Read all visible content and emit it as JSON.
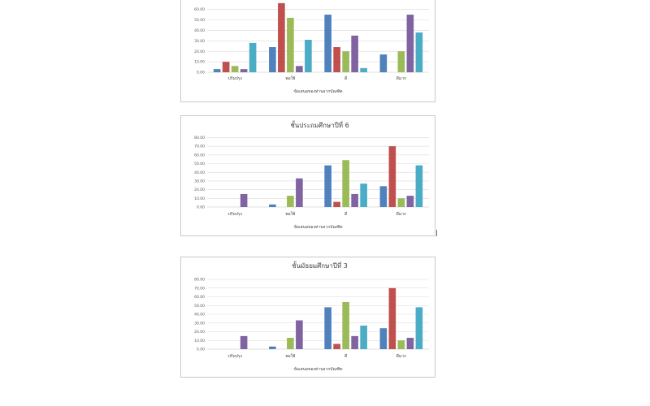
{
  "colors": [
    "#4f81bd",
    "#c0504d",
    "#9bbb59",
    "#8064a2",
    "#4bacc6"
  ],
  "charts": [
    {
      "chart_data": {
        "type": "bar",
        "title": "",
        "xlabel": "ข้อเสนอของท่านจากบัณฑิต",
        "ylabel": "",
        "categories": [
          "ปรับปรุง",
          "พอใช้",
          "ดี",
          "ดีมาก"
        ],
        "ylim": [
          0,
          80
        ],
        "yticks": [
          "0.00",
          "10.00",
          "20.00",
          "30.00",
          "40.00",
          "50.00",
          "60.00"
        ],
        "series": [
          {
            "values": [
              3,
              24,
              55,
              17
            ]
          },
          {
            "values": [
              10,
              66,
              24,
              0
            ]
          },
          {
            "values": [
              6,
              52,
              20,
              20
            ]
          },
          {
            "values": [
              3,
              6,
              35,
              55
            ]
          },
          {
            "values": [
              28,
              31,
              4,
              38
            ]
          }
        ],
        "grid": true,
        "legend": "none"
      }
    },
    {
      "chart_data": {
        "type": "bar",
        "title": "ชั้นประถมศึกษาปีที่ 6",
        "xlabel": "ข้อเสนอของท่านจากบัณฑิต",
        "ylabel": "",
        "categories": [
          "ปรับปรุง",
          "พอใช้",
          "ดี",
          "ดีมาก"
        ],
        "ylim": [
          0,
          80
        ],
        "yticks": [
          "0.00",
          "10.00",
          "20.00",
          "30.00",
          "40.00",
          "50.00",
          "60.00",
          "70.00",
          "80.00"
        ],
        "series": [
          {
            "values": [
              0,
              3,
              48,
              24
            ]
          },
          {
            "values": [
              0,
              0,
              6,
              70
            ]
          },
          {
            "values": [
              0,
              13,
              54,
              10
            ]
          },
          {
            "values": [
              15,
              33,
              15,
              13
            ]
          },
          {
            "values": [
              0,
              0,
              27,
              48
            ]
          }
        ],
        "grid": true,
        "legend": "none"
      }
    },
    {
      "chart_data": {
        "type": "bar",
        "title": "ชั้นมัธยมศึกษาปีที่ 3",
        "xlabel": "ข้อเสนอของท่านจากบัณฑิต",
        "ylabel": "",
        "categories": [
          "ปรับปรุง",
          "พอใช้",
          "ดี",
          "ดีมาก"
        ],
        "ylim": [
          0,
          80
        ],
        "yticks": [
          "0.00",
          "10.00",
          "20.00",
          "30.00",
          "40.00",
          "50.00",
          "60.00",
          "70.00",
          "80.00"
        ],
        "series": [
          {
            "values": [
              0,
              3,
              48,
              24
            ]
          },
          {
            "values": [
              0,
              0,
              6,
              70
            ]
          },
          {
            "values": [
              0,
              13,
              54,
              10
            ]
          },
          {
            "values": [
              15,
              33,
              15,
              13
            ]
          },
          {
            "values": [
              0,
              0,
              27,
              48
            ]
          }
        ],
        "grid": true,
        "legend": "none"
      }
    }
  ]
}
